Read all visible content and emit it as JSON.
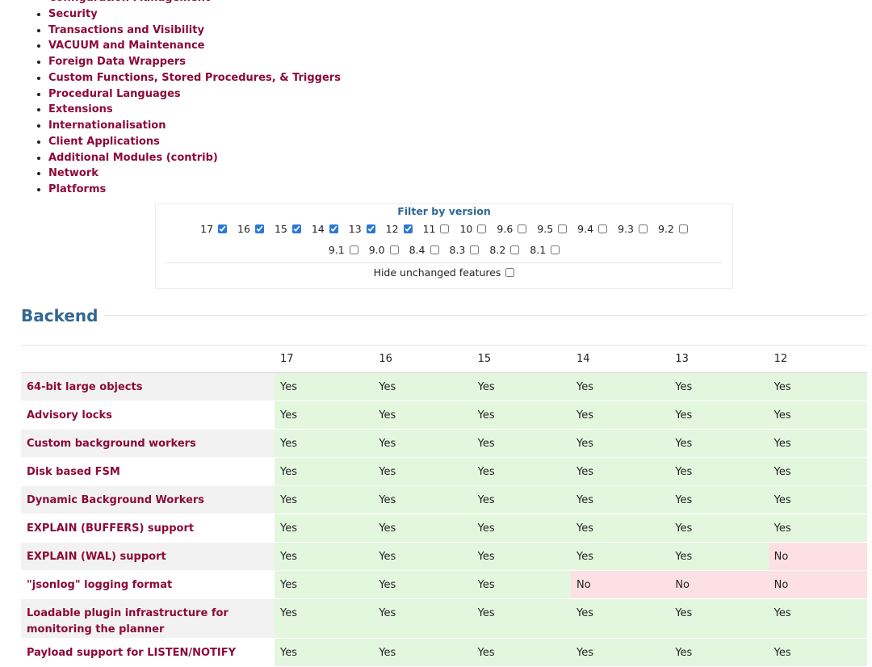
{
  "nav": {
    "items": [
      "Configuration Management",
      "Security",
      "Transactions and Visibility",
      "VACUUM and Maintenance",
      "Foreign Data Wrappers",
      "Custom Functions, Stored Procedures, & Triggers",
      "Procedural Languages",
      "Extensions",
      "Internationalisation",
      "Client Applications",
      "Additional Modules (contrib)",
      "Network",
      "Platforms"
    ]
  },
  "filter": {
    "title": "Filter by version",
    "versions": [
      {
        "label": "17",
        "checked": true
      },
      {
        "label": "16",
        "checked": true
      },
      {
        "label": "15",
        "checked": true
      },
      {
        "label": "14",
        "checked": true
      },
      {
        "label": "13",
        "checked": true
      },
      {
        "label": "12",
        "checked": true
      },
      {
        "label": "11",
        "checked": false
      },
      {
        "label": "10",
        "checked": false
      },
      {
        "label": "9.6",
        "checked": false
      },
      {
        "label": "9.5",
        "checked": false
      },
      {
        "label": "9.4",
        "checked": false
      },
      {
        "label": "9.3",
        "checked": false
      },
      {
        "label": "9.2",
        "checked": false
      },
      {
        "label": "9.1",
        "checked": false
      },
      {
        "label": "9.0",
        "checked": false
      },
      {
        "label": "8.4",
        "checked": false
      },
      {
        "label": "8.3",
        "checked": false
      },
      {
        "label": "8.2",
        "checked": false
      },
      {
        "label": "8.1",
        "checked": false
      }
    ],
    "hide_unchanged": {
      "label": "Hide unchanged features",
      "checked": false
    }
  },
  "section": {
    "title": "Backend",
    "table": {
      "columns": [
        "17",
        "16",
        "15",
        "14",
        "13",
        "12"
      ],
      "rows": [
        {
          "feature": "64-bit large objects",
          "values": [
            "Yes",
            "Yes",
            "Yes",
            "Yes",
            "Yes",
            "Yes"
          ]
        },
        {
          "feature": "Advisory locks",
          "values": [
            "Yes",
            "Yes",
            "Yes",
            "Yes",
            "Yes",
            "Yes"
          ]
        },
        {
          "feature": "Custom background workers",
          "values": [
            "Yes",
            "Yes",
            "Yes",
            "Yes",
            "Yes",
            "Yes"
          ]
        },
        {
          "feature": "Disk based FSM",
          "values": [
            "Yes",
            "Yes",
            "Yes",
            "Yes",
            "Yes",
            "Yes"
          ]
        },
        {
          "feature": "Dynamic Background Workers",
          "values": [
            "Yes",
            "Yes",
            "Yes",
            "Yes",
            "Yes",
            "Yes"
          ]
        },
        {
          "feature": "EXPLAIN (BUFFERS) support",
          "values": [
            "Yes",
            "Yes",
            "Yes",
            "Yes",
            "Yes",
            "Yes"
          ]
        },
        {
          "feature": "EXPLAIN (WAL) support",
          "values": [
            "Yes",
            "Yes",
            "Yes",
            "Yes",
            "Yes",
            "No"
          ]
        },
        {
          "feature": "\"jsonlog\" logging format",
          "values": [
            "Yes",
            "Yes",
            "Yes",
            "No",
            "No",
            "No"
          ]
        },
        {
          "feature": "Loadable plugin infrastructure for monitoring the planner",
          "values": [
            "Yes",
            "Yes",
            "Yes",
            "Yes",
            "Yes",
            "Yes"
          ]
        },
        {
          "feature": "Payload support for LISTEN/NOTIFY",
          "values": [
            "Yes",
            "Yes",
            "Yes",
            "Yes",
            "Yes",
            "Yes"
          ]
        }
      ]
    }
  }
}
